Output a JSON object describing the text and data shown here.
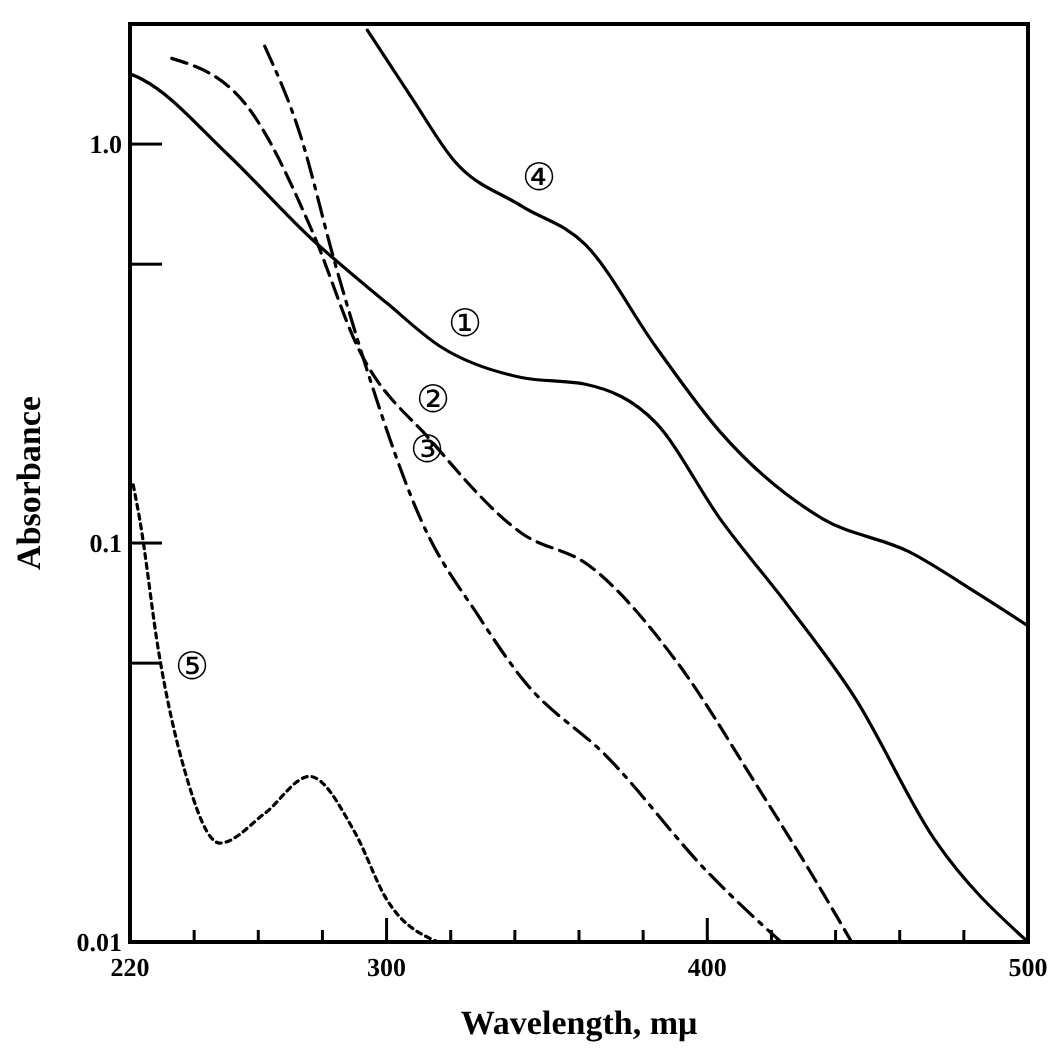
{
  "chart_data": {
    "type": "line",
    "xlabel": "Wavelength, mμ",
    "ylabel": "Absorbance",
    "log": "y",
    "xlim": [
      220,
      500
    ],
    "ylim": [
      0.01,
      2
    ],
    "xticks": [
      220,
      {
        "value": 240,
        "label": null
      },
      {
        "value": 260,
        "label": null
      },
      {
        "value": 280,
        "label": null
      },
      300,
      {
        "value": 320,
        "label": null
      },
      {
        "value": 340,
        "label": null
      },
      {
        "value": 360,
        "label": null
      },
      {
        "value": 380,
        "label": null
      },
      400,
      {
        "value": 420,
        "label": null
      },
      {
        "value": 440,
        "label": null
      },
      {
        "value": 460,
        "label": null
      },
      {
        "value": 480,
        "label": null
      },
      500
    ],
    "yticks": [
      0.01,
      {
        "value": 0.05,
        "label": null
      },
      {
        "value": 0.1,
        "label": "0.1"
      },
      {
        "value": 0.5,
        "label": null
      },
      {
        "value": 1,
        "label": "1.0"
      }
    ],
    "grid": false,
    "legend": false,
    "marker": "none",
    "series": [
      {
        "color": "#000000",
        "line_style": "solid",
        "x": [
          220,
          224,
          250,
          277,
          300,
          317,
          342,
          362,
          384,
          404,
          425,
          446,
          471,
          500
        ],
        "values": [
          1.5,
          1.45,
          0.95,
          0.575,
          0.4,
          0.31,
          0.26,
          0.25,
          0.2,
          0.115,
          0.07,
          0.041,
          0.018,
          0.01
        ]
      },
      {
        "color": "#000000",
        "line_style": "dashed",
        "x": [
          233,
          256,
          277,
          291,
          314,
          342,
          363,
          390,
          415,
          436,
          445
        ],
        "values": [
          1.64,
          1.26,
          0.6,
          0.31,
          0.18,
          0.106,
          0.088,
          0.051,
          0.025,
          0.0133,
          0.01
        ]
      },
      {
        "color": "#000000",
        "line_style": "dashdot",
        "x": [
          262,
          273,
          284,
          294,
          311,
          329,
          342,
          369,
          400,
          423
        ],
        "values": [
          1.76,
          1.06,
          0.5,
          0.27,
          0.113,
          0.065,
          0.046,
          0.029,
          0.015,
          0.01
        ]
      },
      {
        "color": "#000000",
        "line_style": "solid",
        "x": [
          294,
          308,
          321,
          342,
          362,
          384,
          404,
          436,
          463,
          484,
          500
        ],
        "values": [
          1.93,
          1.3,
          0.91,
          0.7,
          0.56,
          0.31,
          0.19,
          0.115,
          0.095,
          0.075,
          0.062
        ]
      },
      {
        "color": "#000000",
        "line_style": "dotted",
        "x": [
          221,
          223,
          229,
          237,
          248,
          262,
          276,
          290,
          300,
          316
        ],
        "values": [
          0.14,
          0.115,
          0.053,
          0.027,
          0.0177,
          0.021,
          0.026,
          0.0189,
          0.0128,
          0.01
        ]
      }
    ],
    "annotations": [
      {
        "text": "①",
        "x": 317,
        "y": 0.31
      },
      {
        "text": "②",
        "x": 307,
        "y": 0.2
      },
      {
        "text": "③",
        "x": 305,
        "y": 0.15
      },
      {
        "text": "④",
        "x": 340,
        "y": 0.72
      },
      {
        "text": "⑤",
        "x": 232,
        "y": 0.043
      }
    ]
  }
}
